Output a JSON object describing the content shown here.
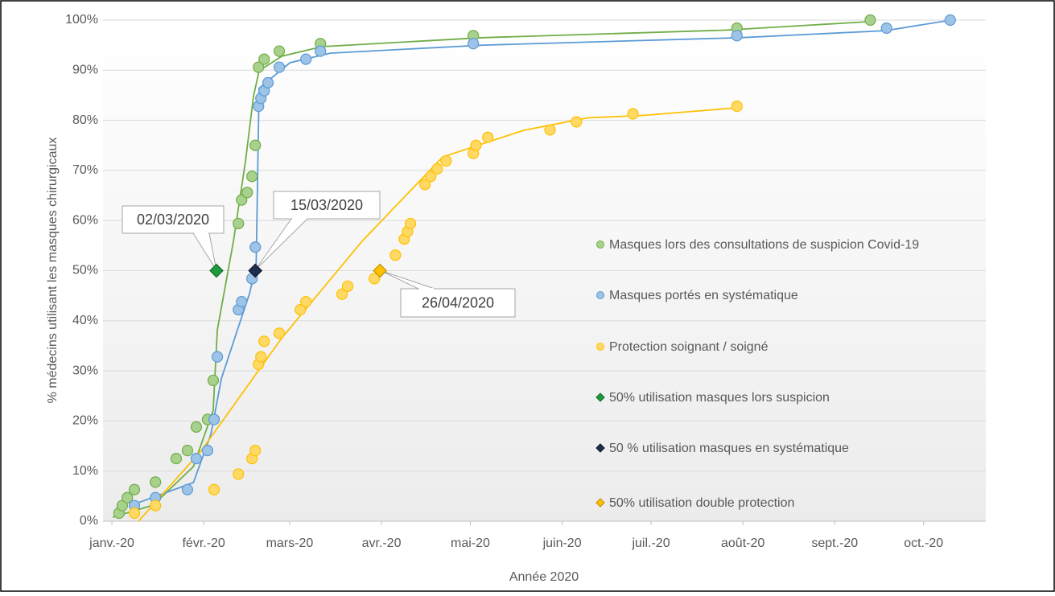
{
  "chart_data": {
    "type": "scatter",
    "x_label": "Année 2020",
    "y_label": "% médecins utilisant les masques chirurgicaux",
    "xlim": [
      -3,
      295
    ],
    "ylim": [
      0,
      100
    ],
    "xticks": [
      {
        "value": 0,
        "label": "janv.-20"
      },
      {
        "value": 31,
        "label": "févr.-20"
      },
      {
        "value": 60,
        "label": "mars-20"
      },
      {
        "value": 91,
        "label": "avr.-20"
      },
      {
        "value": 121,
        "label": "mai-20"
      },
      {
        "value": 152,
        "label": "juin-20"
      },
      {
        "value": 182,
        "label": "juil.-20"
      },
      {
        "value": 213,
        "label": "août-20"
      },
      {
        "value": 244,
        "label": "sept.-20"
      },
      {
        "value": 274,
        "label": "oct.-20"
      }
    ],
    "yticks": [
      {
        "value": 0,
        "label": "0%"
      },
      {
        "value": 10,
        "label": "10%"
      },
      {
        "value": 20,
        "label": "20%"
      },
      {
        "value": 30,
        "label": "30%"
      },
      {
        "value": 40,
        "label": "40%"
      },
      {
        "value": 50,
        "label": "50%"
      },
      {
        "value": 60,
        "label": "60%"
      },
      {
        "value": 70,
        "label": "70%"
      },
      {
        "value": 80,
        "label": "80%"
      },
      {
        "value": 90,
        "label": "90%"
      },
      {
        "value": 100,
        "label": "100%"
      }
    ],
    "grid": true,
    "legend": "right",
    "series": [
      {
        "name": "Masques lors des consultations de suspicion Covid-19",
        "color": "#a9d18e",
        "stroke": "#70ad47",
        "marker": "circle",
        "x": [
          2.4,
          3.5,
          5.2,
          7.6,
          14.7,
          21.7,
          25.5,
          28.5,
          32.3,
          34.2,
          42.7,
          43.8,
          45.7,
          47.3,
          48.4,
          49.5,
          51.4,
          56.5,
          70.4,
          122,
          211,
          256
        ],
        "values": [
          1.6,
          3.1,
          4.7,
          6.3,
          7.8,
          12.5,
          14.1,
          18.8,
          20.3,
          28.1,
          59.4,
          64.1,
          65.6,
          68.8,
          75,
          90.6,
          92.2,
          93.8,
          95.3,
          96.9,
          98.4,
          100
        ]
      },
      {
        "name": "Masques portés en systématique",
        "color": "#9dc3e6",
        "stroke": "#5b9bd5",
        "marker": "circle",
        "x": [
          7.6,
          14.7,
          25.5,
          28.5,
          32.3,
          34.5,
          35.6,
          42.7,
          43.8,
          47.3,
          48.4,
          49.5,
          50.3,
          51.4,
          52.7,
          56.5,
          65.5,
          70.4,
          122,
          211,
          261.5,
          283
        ],
        "values": [
          3.1,
          4.7,
          6.3,
          12.5,
          14.1,
          20.3,
          32.8,
          42.2,
          43.8,
          48.4,
          54.7,
          82.8,
          84.4,
          85.9,
          87.5,
          90.6,
          92.2,
          93.8,
          95.3,
          96.9,
          98.4,
          100
        ]
      },
      {
        "name": "Protection soignant / soigné",
        "color": "#ffd966",
        "stroke": "#ffc000",
        "marker": "circle",
        "x": [
          7.6,
          14.7,
          34.5,
          42.7,
          47.3,
          48.4,
          49.5,
          50.3,
          51.4,
          56.5,
          63.6,
          65.5,
          77.7,
          79.6,
          88.6,
          95.7,
          98.7,
          99.8,
          100.8,
          105.7,
          107.6,
          109.8,
          112.8,
          122,
          122.9,
          126.9,
          147.9,
          156.8,
          175.9,
          211
        ],
        "values": [
          1.6,
          3.1,
          6.3,
          9.4,
          12.5,
          14.1,
          31.3,
          32.8,
          35.9,
          37.5,
          42.2,
          43.8,
          45.3,
          46.9,
          48.4,
          53.1,
          56.3,
          57.8,
          59.4,
          67.2,
          68.8,
          70.3,
          71.9,
          73.4,
          75,
          76.6,
          78.1,
          79.7,
          81.3,
          82.8
        ]
      },
      {
        "name": "50% utilisation masques lors suspicion",
        "color": "#1e9b3a",
        "stroke": "#146b28",
        "marker": "diamond",
        "x": [
          35.3
        ],
        "values": [
          50
        ]
      },
      {
        "name": "50 % utilisation masques en systématique",
        "color": "#1f2d4f",
        "stroke": "#0e1628",
        "marker": "diamond",
        "x": [
          48.4
        ],
        "values": [
          50
        ]
      },
      {
        "name": "50% utilisation double protection",
        "color": "#ffc000",
        "stroke": "#bf8f00",
        "marker": "diamond",
        "x": [
          90.5
        ],
        "values": [
          50
        ]
      }
    ],
    "trendlines": [
      {
        "color": "#70ad47",
        "x": [
          0.3,
          13.9,
          27.5,
          34.2,
          35.6,
          41,
          45.1,
          47.8,
          49.7,
          57.4,
          70.9,
          125.3,
          206.8,
          255.8
        ],
        "values": [
          0.8,
          3.2,
          10.9,
          22.1,
          38.2,
          55.8,
          71.9,
          84.8,
          89.9,
          92.8,
          94.7,
          96.5,
          98,
          99.7
        ]
      },
      {
        "color": "#5b9bd5",
        "x": [
          7.6,
          27.5,
          33.4,
          37,
          42.4,
          46.5,
          48.7,
          49.7,
          60.1,
          73.7,
          125.3,
          212.3,
          261.2,
          283.2
        ],
        "values": [
          3.4,
          7.7,
          17.3,
          28.5,
          38.2,
          45.5,
          51.1,
          86.4,
          91.5,
          93.4,
          95,
          96.5,
          97.9,
          100
        ]
      },
      {
        "color": "#ffc000",
        "x": [
          9,
          30.2,
          57.4,
          84.5,
          111.7,
          138.9,
          160.6,
          179.7,
          211
        ],
        "values": [
          0,
          14.1,
          36.6,
          55.9,
          72.7,
          78,
          80.5,
          81,
          82.5
        ]
      }
    ],
    "annotations": [
      {
        "text": "02/03/2020"
      },
      {
        "text": "15/03/2020"
      },
      {
        "text": "26/04/2020"
      }
    ]
  }
}
